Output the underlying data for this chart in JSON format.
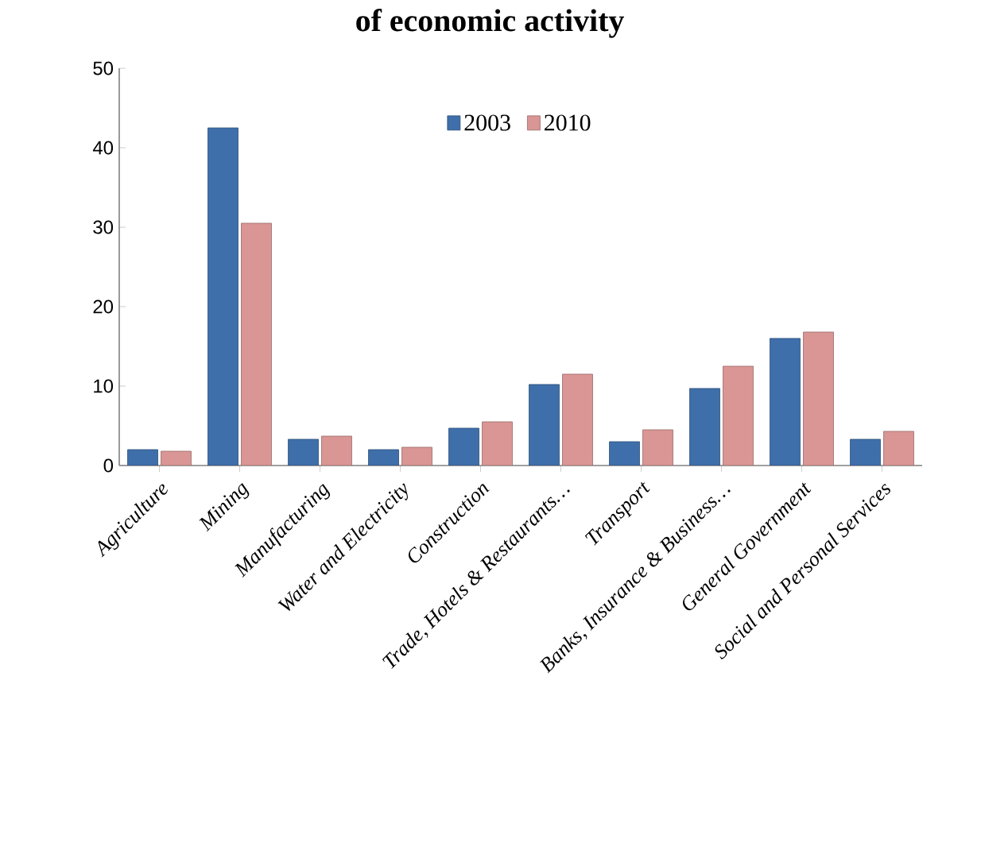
{
  "chart_data": {
    "type": "bar",
    "title": "of economic activity",
    "categories": [
      "Agriculture",
      "Mining",
      "Manufacturing",
      "Water and Electricity",
      "Construction",
      "Trade, Hotels & Restaurants…",
      "Transport",
      "Banks, Insurance & Business…",
      "General Government",
      "Social and Personal Services"
    ],
    "series": [
      {
        "name": "2003",
        "color": "#3f6faa",
        "values": [
          2.0,
          42.5,
          3.3,
          2.0,
          4.7,
          10.2,
          3.0,
          9.7,
          16.0,
          3.3
        ]
      },
      {
        "name": "2010",
        "color": "#d99694",
        "values": [
          1.8,
          30.5,
          3.7,
          2.3,
          5.5,
          11.5,
          4.5,
          12.5,
          16.8,
          4.3
        ]
      }
    ],
    "ylim": [
      0,
      50
    ],
    "yticks": [
      0,
      10,
      20,
      30,
      40,
      50
    ],
    "legend": "top",
    "grid": false
  }
}
